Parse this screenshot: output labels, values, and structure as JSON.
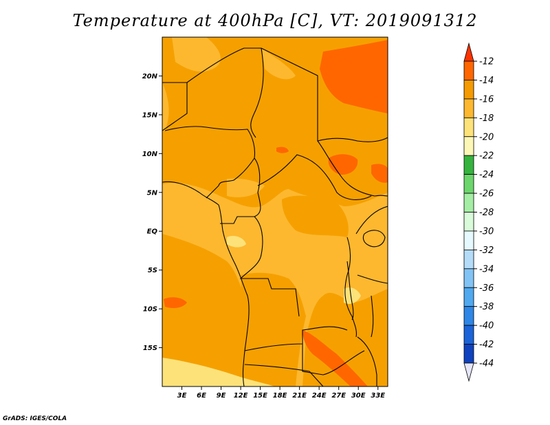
{
  "title": "Temperature at 400hPa [C], VT: 2019091312",
  "footer": "GrADS: IGES/COLA",
  "map": {
    "lon_range": [
      0,
      34.5
    ],
    "lat_range": [
      -20,
      25
    ],
    "lat_ticks": [
      {
        "value": 20,
        "label": "20N"
      },
      {
        "value": 15,
        "label": "15N"
      },
      {
        "value": 10,
        "label": "10N"
      },
      {
        "value": 5,
        "label": "5N"
      },
      {
        "value": 0,
        "label": "EQ"
      },
      {
        "value": -5,
        "label": "5S"
      },
      {
        "value": -10,
        "label": "10S"
      },
      {
        "value": -15,
        "label": "15S"
      }
    ],
    "lon_ticks": [
      {
        "value": 3,
        "label": "3E"
      },
      {
        "value": 6,
        "label": "6E"
      },
      {
        "value": 9,
        "label": "9E"
      },
      {
        "value": 12,
        "label": "12E"
      },
      {
        "value": 15,
        "label": "15E"
      },
      {
        "value": 18,
        "label": "18E"
      },
      {
        "value": 21,
        "label": "21E"
      },
      {
        "value": 24,
        "label": "24E"
      },
      {
        "value": 27,
        "label": "27E"
      },
      {
        "value": 30,
        "label": "30E"
      },
      {
        "value": 33,
        "label": "33E"
      }
    ],
    "field_colors": {
      "band_m14_m12": "#ff6600",
      "band_m16_m14": "#f5a000",
      "band_m18_m16": "#fdb82f",
      "band_m20_m18": "#fde27a",
      "land_line": "#000000"
    }
  },
  "colorbar": {
    "labels": [
      "-12",
      "-14",
      "-16",
      "-18",
      "-20",
      "-22",
      "-24",
      "-26",
      "-28",
      "-30",
      "-32",
      "-34",
      "-36",
      "-38",
      "-40",
      "-42",
      "-44"
    ],
    "colors": [
      "#ff6600",
      "#f59a00",
      "#fdb82f",
      "#fde27a",
      "#fdf7b6",
      "#35b33e",
      "#6bd66b",
      "#a4eda4",
      "#d9fbd9",
      "#e6f9fe",
      "#b4dcf9",
      "#82c3f5",
      "#50a8ef",
      "#2e86e6",
      "#1b63d8",
      "#0f42be",
      "#0b1670"
    ],
    "top_color": "#ff3300",
    "bottom_color": "#e6e6fa"
  }
}
